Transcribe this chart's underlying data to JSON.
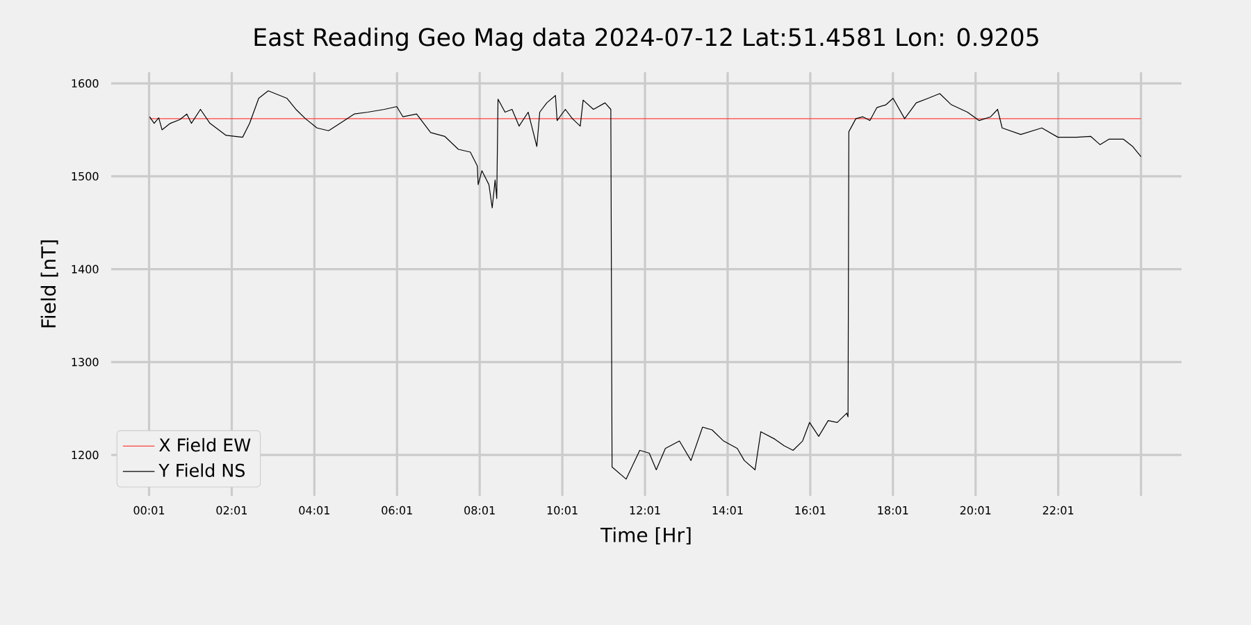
{
  "chart_data": {
    "type": "line",
    "title": "East Reading Geo Mag data        2024-07-12       Lat:51.4581  Lon: 0.9205",
    "xlabel": "Time  [Hr]",
    "ylabel": "Field  [nT]",
    "xlim": [
      -0.9,
      25.0
    ],
    "ylim": [
      1156,
      1612
    ],
    "xticks": [
      {
        "value": 0.0167,
        "label": "00:01"
      },
      {
        "value": 2.0167,
        "label": "02:01"
      },
      {
        "value": 4.0167,
        "label": "04:01"
      },
      {
        "value": 6.0167,
        "label": "06:01"
      },
      {
        "value": 8.0167,
        "label": "08:01"
      },
      {
        "value": 10.0167,
        "label": "10:01"
      },
      {
        "value": 12.0167,
        "label": "12:01"
      },
      {
        "value": 14.0167,
        "label": "14:01"
      },
      {
        "value": 16.0167,
        "label": "16:01"
      },
      {
        "value": 18.0167,
        "label": "18:01"
      },
      {
        "value": 20.0167,
        "label": "20:01"
      },
      {
        "value": 22.0167,
        "label": "22:01"
      },
      {
        "value": 24.02,
        "label": null
      }
    ],
    "yticks": [
      1200,
      1300,
      1400,
      1500,
      1600
    ],
    "grid": true,
    "legend": "bottom left",
    "series": [
      {
        "name": "X Field EW",
        "color": "#ff4040",
        "x": [
          0.03,
          24.02
        ],
        "values": [
          1562,
          1562
        ]
      },
      {
        "name": "Y Field NS",
        "color": "#000000",
        "x": [
          0.03,
          0.14,
          0.25,
          0.33,
          0.53,
          0.76,
          0.93,
          1.04,
          1.26,
          1.49,
          1.88,
          2.28,
          2.45,
          2.67,
          2.9,
          3.35,
          3.57,
          3.8,
          4.08,
          4.36,
          4.64,
          4.98,
          5.31,
          5.71,
          6.01,
          6.16,
          6.49,
          6.83,
          7.17,
          7.5,
          7.79,
          7.96,
          7.98,
          8.07,
          8.24,
          8.32,
          8.39,
          8.43,
          8.46,
          8.63,
          8.8,
          8.97,
          9.19,
          9.4,
          9.47,
          9.64,
          9.85,
          9.89,
          10.09,
          10.26,
          10.45,
          10.52,
          10.77,
          11.05,
          11.19,
          11.22,
          11.56,
          11.89,
          12.12,
          12.29,
          12.51,
          12.85,
          13.13,
          13.41,
          13.64,
          13.92,
          14.25,
          14.42,
          14.68,
          14.82,
          15.16,
          15.38,
          15.6,
          15.83,
          16.0,
          16.22,
          16.45,
          16.67,
          16.9,
          16.93,
          16.95,
          17.12,
          17.29,
          17.46,
          17.63,
          17.85,
          18.02,
          18.3,
          18.58,
          18.87,
          19.15,
          19.43,
          19.82,
          20.1,
          20.38,
          20.55,
          20.66,
          21.11,
          21.62,
          22.01,
          22.46,
          22.8,
          23.03,
          23.25,
          23.59,
          23.82,
          24.02
        ],
        "values": [
          1564,
          1557,
          1563,
          1550,
          1557,
          1561,
          1567,
          1557,
          1572,
          1557,
          1544,
          1542,
          1557,
          1584,
          1592,
          1584,
          1572,
          1562,
          1552,
          1549,
          1557,
          1567,
          1569,
          1572,
          1575,
          1564,
          1567,
          1547,
          1543,
          1529,
          1526,
          1511,
          1491,
          1506,
          1491,
          1466,
          1496,
          1476,
          1583,
          1569,
          1572,
          1554,
          1569,
          1532,
          1569,
          1579,
          1587,
          1560,
          1572,
          1562,
          1554,
          1582,
          1572,
          1579,
          1572,
          1187,
          1174,
          1205,
          1202,
          1184,
          1207,
          1215,
          1194,
          1230,
          1227,
          1215,
          1207,
          1194,
          1184,
          1225,
          1217,
          1210,
          1205,
          1215,
          1235,
          1220,
          1237,
          1235,
          1245,
          1241,
          1548,
          1562,
          1564,
          1560,
          1574,
          1577,
          1584,
          1562,
          1579,
          1584,
          1589,
          1577,
          1569,
          1560,
          1564,
          1572,
          1552,
          1545,
          1552,
          1542,
          1542,
          1543,
          1534,
          1540,
          1540,
          1532,
          1521
        ]
      }
    ]
  }
}
